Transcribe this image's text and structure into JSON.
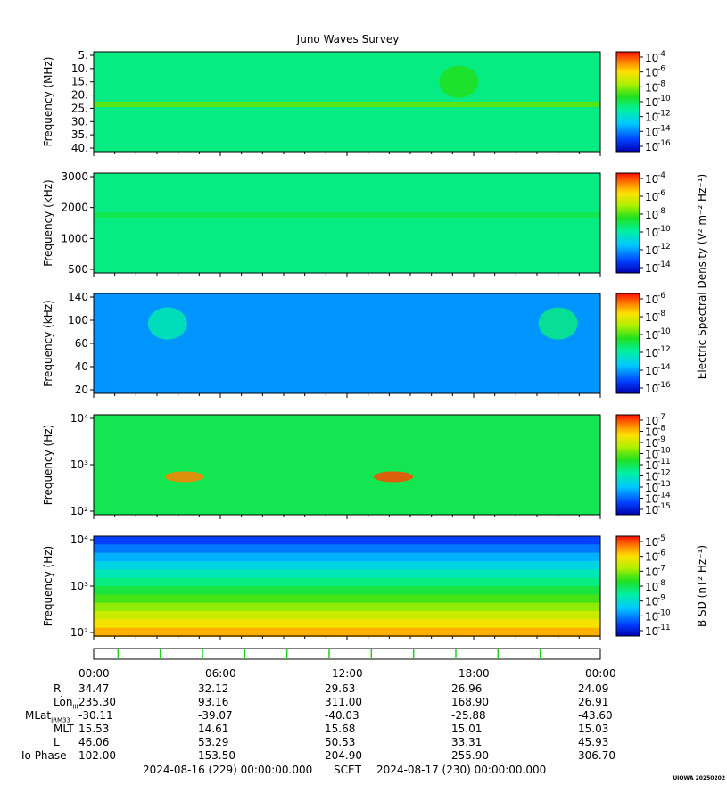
{
  "chart_data": [
    {
      "type": "heatmap",
      "panel": "hfwbr",
      "ylabel": "Frequency (MHz)",
      "yticks": [
        "5.",
        "10.",
        "15.",
        "20.",
        "25.",
        "30.",
        "35.",
        "40."
      ],
      "ylim": [
        3,
        41
      ],
      "colorbar_ticks": [
        "-4",
        "-6",
        "-8",
        "-10",
        "-12",
        "-14",
        "-16"
      ],
      "colorbar_base": "10",
      "colorbar_label": "",
      "background_level": 0.45,
      "features": [
        {
          "kind": "horizontal_band",
          "freq": 21,
          "level": 0.6
        },
        {
          "kind": "burst",
          "time": 17.3,
          "level": 0.55
        }
      ]
    },
    {
      "type": "heatmap",
      "panel": "hfr",
      "ylabel": "Frequency (kHz)",
      "yticks": [
        "3000",
        "2000",
        "1000",
        "500"
      ],
      "ylim": [
        140,
        3000
      ],
      "colorbar_ticks": [
        "-4",
        "-6",
        "-8",
        "-10",
        "-12",
        "-14"
      ],
      "colorbar_base": "10",
      "colorbar_label": "Electric Spectral Density (V² m⁻² Hz⁻¹)",
      "background_level": 0.45,
      "features": [
        {
          "kind": "horizontal_band",
          "freq": 1800,
          "level": 0.5
        }
      ]
    },
    {
      "type": "heatmap",
      "panel": "lfr-high",
      "ylabel": "Frequency (kHz)",
      "yticks": [
        "140",
        "100",
        "60",
        "40",
        "20"
      ],
      "ylim": [
        20,
        140
      ],
      "colorbar_ticks": [
        "-6",
        "-8",
        "-10",
        "-12",
        "-14",
        "-16"
      ],
      "colorbar_base": "10",
      "colorbar_label": "",
      "background_level": 0.22,
      "features": [
        {
          "kind": "emission",
          "time": 3.5,
          "level": 0.4
        },
        {
          "kind": "emission",
          "time": 22.0,
          "level": 0.45
        }
      ]
    },
    {
      "type": "heatmap",
      "panel": "lfr-low-e",
      "ylabel": "Frequency (Hz)",
      "yticks": [
        "10⁴",
        "10³",
        "10²"
      ],
      "ylim": [
        50,
        20000
      ],
      "colorbar_ticks": [
        "-7",
        "-8",
        "-9",
        "-10",
        "-11",
        "-12",
        "-13",
        "-14",
        "-15"
      ],
      "colorbar_base": "10",
      "colorbar_label": "",
      "background_level": 0.5,
      "features": [
        {
          "kind": "hot_spot",
          "freq": 600,
          "time": 4.3,
          "level": 0.9
        },
        {
          "kind": "hot_spot",
          "freq": 600,
          "time": 14.2,
          "level": 0.95
        }
      ]
    },
    {
      "type": "heatmap",
      "panel": "lfr-low-b",
      "ylabel": "Frequency (Hz)",
      "yticks": [
        "10⁴",
        "10³",
        "10²"
      ],
      "ylim": [
        50,
        20000
      ],
      "colorbar_ticks": [
        "-5",
        "-6",
        "-7",
        "-8",
        "-9",
        "-10",
        "-11"
      ],
      "colorbar_base": "10",
      "colorbar_label": "B SD (nT² Hz⁻¹)",
      "background_level": 0.5,
      "features": [
        {
          "kind": "gradient",
          "low_freq_level": 0.85,
          "high_freq_level": 0.12
        }
      ]
    }
  ],
  "title": "Juno Waves Survey",
  "time_labels": [
    "00:00",
    "06:00",
    "12:00",
    "18:00",
    "00:00"
  ],
  "ephemeris": [
    {
      "label": "R",
      "sub": "J",
      "values": [
        "34.47",
        "32.12",
        "29.63",
        "26.96",
        "24.09"
      ]
    },
    {
      "label": "Lon",
      "sub": "III",
      "values": [
        "235.30",
        "93.16",
        "311.00",
        "168.90",
        "26.91"
      ]
    },
    {
      "label": "MLat",
      "sub": "JRM33",
      "values": [
        "-30.11",
        "-39.07",
        "-40.03",
        "-25.88",
        "-43.60"
      ]
    },
    {
      "label": "MLT",
      "sub": "",
      "values": [
        "15.53",
        "14.61",
        "15.68",
        "15.01",
        "15.03"
      ]
    },
    {
      "label": "L",
      "sub": "",
      "values": [
        "46.06",
        "53.29",
        "50.53",
        "33.31",
        "45.93"
      ]
    },
    {
      "label": "Io Phase",
      "sub": "",
      "values": [
        "102.00",
        "153.50",
        "204.90",
        "255.90",
        "306.70"
      ]
    }
  ],
  "footer": {
    "start": "2024-08-16 (229) 00:00:00.000",
    "scet": "SCET",
    "end": "2024-08-17 (230) 00:00:00.000"
  },
  "stamp": "UIOWA 20250202",
  "colors": {
    "low": "#0000c8",
    "mid": "#00e040",
    "high": "#ff1800"
  }
}
